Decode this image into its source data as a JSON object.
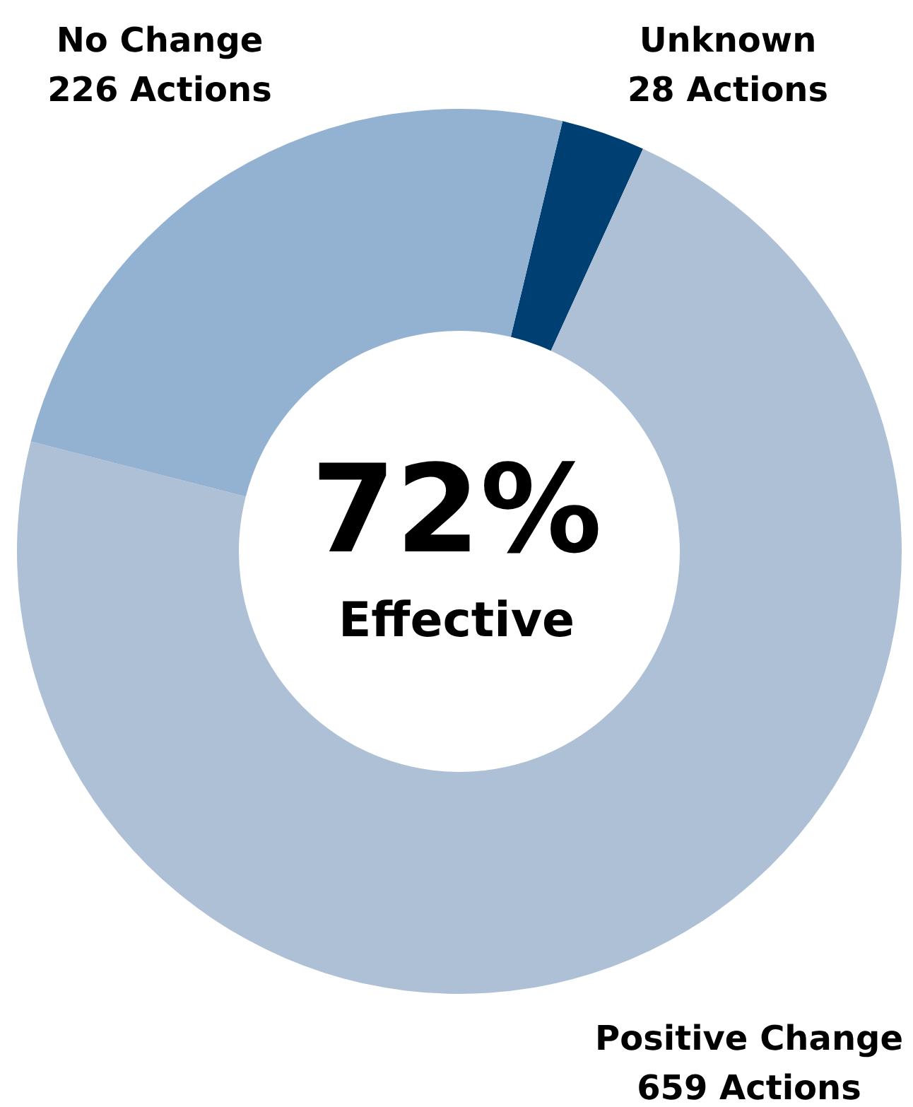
{
  "chart_data": {
    "type": "donut",
    "categories": [
      "Unknown",
      "Positive Change",
      "No Change"
    ],
    "values": [
      28,
      659,
      226
    ],
    "colors": [
      "#003f72",
      "#aec0d6",
      "#93b1d0"
    ],
    "value_labels": [
      "28 Actions",
      "659 Actions",
      "226 Actions"
    ],
    "annotations": [
      "72%",
      "Effective"
    ],
    "legend": false
  }
}
